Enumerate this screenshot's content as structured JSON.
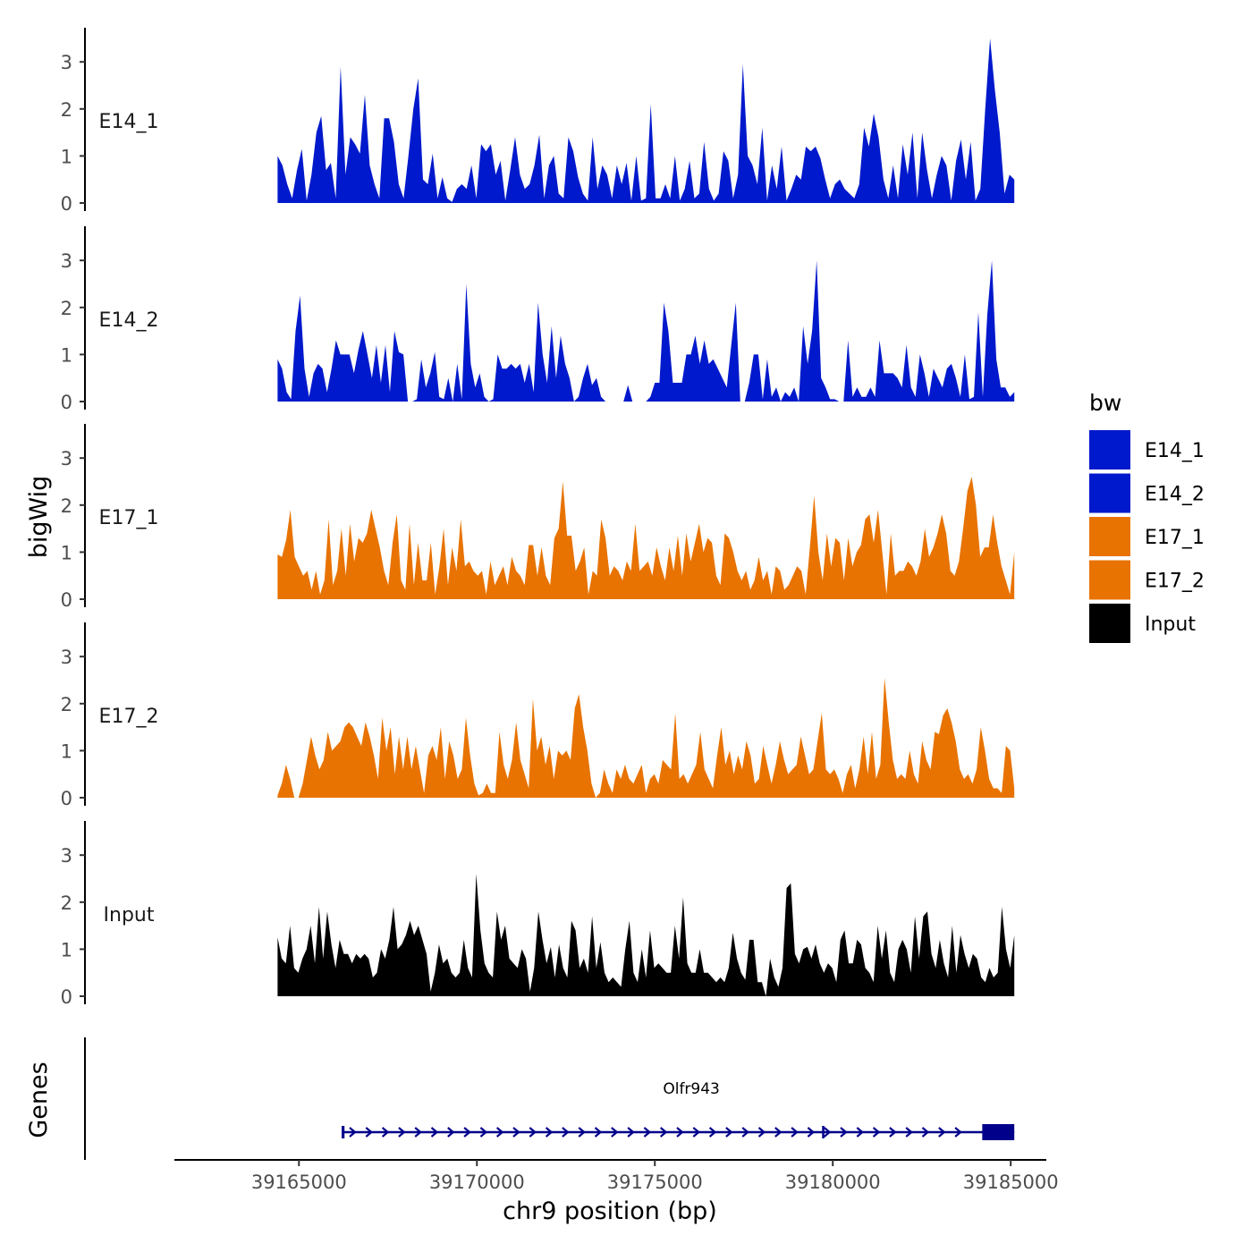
{
  "chart_data": {
    "type": "area",
    "x_label": "chr9 position (bp)",
    "y_label": "bigWig",
    "gene_panel_label": "Genes",
    "x_range": [
      39161500,
      39186000
    ],
    "x_ticks": [
      "39165000",
      "39170000",
      "39175000",
      "39180000",
      "39185000"
    ],
    "y_range": [
      0,
      3.8
    ],
    "y_ticks": [
      "0",
      "1",
      "2",
      "3"
    ],
    "region_start": 39164400,
    "region_end": 39185100,
    "legend": {
      "title": "bw",
      "entries": [
        {
          "label": "E14_1",
          "color": "#0019CC"
        },
        {
          "label": "E14_2",
          "color": "#0019CC"
        },
        {
          "label": "E17_1",
          "color": "#E87300"
        },
        {
          "label": "E17_2",
          "color": "#E87300"
        },
        {
          "label": "Input",
          "color": "#000000"
        }
      ]
    },
    "tracks": [
      {
        "name": "E14_1",
        "color": "#0019CC",
        "values": [
          1.0,
          0.8,
          0.4,
          0.1,
          0.7,
          1.15,
          0.05,
          0.6,
          1.5,
          1.85,
          0.7,
          0.85,
          0.1,
          2.9,
          0.6,
          1.4,
          1.25,
          1.05,
          2.3,
          0.8,
          0.4,
          0.1,
          1.8,
          1.8,
          1.3,
          0.4,
          0.1,
          1.0,
          2.0,
          2.65,
          0.5,
          0.4,
          1.05,
          0.1,
          0.55,
          0.1,
          0.02,
          0.3,
          0.4,
          0.3,
          0.8,
          0.1,
          1.25,
          1.1,
          1.25,
          0.6,
          0.9,
          0.05,
          0.7,
          1.4,
          0.6,
          0.3,
          0.4,
          0.8,
          1.45,
          0.1,
          0.8,
          1.0,
          0.2,
          0.1,
          1.4,
          1.1,
          0.55,
          0.2,
          0.05,
          1.4,
          0.3,
          0.8,
          0.6,
          0.1,
          0.8,
          0.4,
          0.85,
          0.05,
          1.0,
          0.05,
          0.1,
          2.1,
          0.1,
          0.1,
          0.4,
          0.1,
          1.0,
          0.05,
          0.3,
          0.9,
          0.1,
          0.2,
          1.3,
          0.3,
          0.05,
          0.2,
          1.1,
          0.9,
          0.1,
          0.6,
          2.95,
          1.0,
          0.8,
          0.4,
          1.6,
          0.05,
          0.8,
          0.3,
          1.2,
          0.05,
          0.3,
          0.6,
          0.5,
          1.2,
          1.1,
          1.2,
          0.95,
          0.5,
          0.1,
          0.4,
          0.5,
          0.3,
          0.2,
          0.1,
          0.4,
          1.6,
          1.2,
          1.9,
          1.4,
          0.5,
          0.1,
          0.8,
          0.1,
          1.25,
          0.6,
          1.5,
          0.1,
          1.5,
          0.7,
          0.1,
          0.6,
          1.0,
          0.8,
          0.05,
          0.9,
          1.35,
          0.5,
          1.3,
          0.05,
          0.3,
          2.0,
          3.5,
          2.4,
          1.5,
          0.2,
          0.6,
          0.5
        ]
      },
      {
        "name": "E14_2",
        "color": "#0019CC",
        "values": [
          0.9,
          0.7,
          0.2,
          0.05,
          1.5,
          2.25,
          0.7,
          0.1,
          0.6,
          0.8,
          0.7,
          0.2,
          0.7,
          1.3,
          1.0,
          1.0,
          1.0,
          0.6,
          1.1,
          1.5,
          1.0,
          0.5,
          1.2,
          0.4,
          1.2,
          0.2,
          1.5,
          1.05,
          1.0,
          0.0,
          0.0,
          0.05,
          0.9,
          0.3,
          0.6,
          1.05,
          0.1,
          0.05,
          0.5,
          0.0,
          0.8,
          0.05,
          2.5,
          0.8,
          0.3,
          0.6,
          0.1,
          0.0,
          0.05,
          1.0,
          0.7,
          0.7,
          0.8,
          0.7,
          0.8,
          0.4,
          0.8,
          0.2,
          2.1,
          1.0,
          0.4,
          1.6,
          0.5,
          1.4,
          0.8,
          0.5,
          0.0,
          0.1,
          0.5,
          0.8,
          0.35,
          0.5,
          0.1,
          0.0,
          0.0,
          0.0,
          0.0,
          0.0,
          0.35,
          0.0,
          0.0,
          0.0,
          0.0,
          0.1,
          0.4,
          0.4,
          2.1,
          1.5,
          0.4,
          0.4,
          0.4,
          1.0,
          1.0,
          1.4,
          0.8,
          1.3,
          0.8,
          0.9,
          0.7,
          0.5,
          0.3,
          1.2,
          2.1,
          0.0,
          0.0,
          0.4,
          1.0,
          1.0,
          0.05,
          0.9,
          0.1,
          0.3,
          0.0,
          0.2,
          0.1,
          0.3,
          0.0,
          1.6,
          0.8,
          1.5,
          3.0,
          0.5,
          0.3,
          0.05,
          0.05,
          0.0,
          0.0,
          1.3,
          0.1,
          0.3,
          0.1,
          0.1,
          0.3,
          0.1,
          1.3,
          0.6,
          0.6,
          0.6,
          0.5,
          0.3,
          1.2,
          0.3,
          0.1,
          1.0,
          0.6,
          0.1,
          0.7,
          0.5,
          0.3,
          0.7,
          0.8,
          0.5,
          0.1,
          1.0,
          0.05,
          0.1,
          1.9,
          0.1,
          1.85,
          3.0,
          0.9,
          0.3,
          0.3,
          0.1,
          0.2
        ]
      },
      {
        "name": "E17_1",
        "color": "#E87300",
        "values": [
          0.95,
          0.9,
          1.25,
          1.9,
          0.9,
          0.7,
          0.5,
          0.6,
          0.2,
          0.6,
          0.1,
          0.4,
          1.7,
          0.3,
          0.6,
          1.5,
          0.5,
          1.6,
          0.8,
          1.3,
          1.2,
          1.4,
          1.9,
          1.5,
          1.1,
          0.6,
          0.3,
          1.2,
          1.8,
          0.4,
          0.2,
          1.6,
          0.3,
          1.2,
          0.4,
          0.4,
          1.2,
          0.1,
          0.7,
          1.5,
          0.3,
          1.1,
          0.6,
          1.7,
          0.7,
          0.8,
          0.6,
          0.5,
          0.6,
          0.1,
          0.8,
          0.3,
          0.5,
          0.7,
          0.3,
          0.9,
          0.6,
          0.5,
          0.3,
          1.15,
          1.15,
          0.5,
          1.1,
          0.5,
          0.3,
          1.3,
          1.5,
          2.5,
          1.35,
          1.35,
          0.6,
          0.8,
          1.1,
          0.1,
          0.6,
          0.5,
          1.7,
          1.3,
          0.5,
          0.7,
          0.6,
          0.4,
          0.8,
          0.6,
          1.6,
          0.6,
          0.7,
          0.8,
          0.5,
          1.1,
          0.7,
          0.4,
          1.1,
          0.6,
          1.35,
          0.5,
          1.4,
          0.8,
          1.2,
          1.6,
          1.0,
          1.3,
          1.2,
          0.5,
          0.3,
          1.4,
          1.3,
          1.0,
          0.6,
          0.4,
          0.6,
          0.2,
          0.4,
          0.9,
          0.4,
          0.6,
          0.1,
          0.7,
          0.6,
          0.2,
          0.3,
          0.5,
          0.7,
          0.6,
          0.1,
          1.1,
          2.2,
          1.0,
          0.4,
          1.4,
          0.7,
          1.3,
          1.2,
          0.4,
          1.3,
          0.7,
          1.0,
          1.15,
          1.7,
          1.8,
          1.2,
          1.9,
          1.0,
          0.1,
          1.4,
          0.5,
          0.6,
          0.6,
          0.8,
          0.7,
          0.5,
          0.8,
          1.5,
          0.9,
          1.1,
          1.4,
          1.8,
          1.4,
          0.6,
          0.5,
          0.8,
          1.5,
          2.3,
          2.6,
          2.0,
          0.9,
          1.1,
          1.1,
          1.8,
          1.2,
          0.7,
          0.4,
          0.1,
          1.0
        ]
      },
      {
        "name": "E17_2",
        "color": "#E87300",
        "values": [
          0.05,
          0.3,
          0.7,
          0.4,
          0.0,
          0.0,
          0.3,
          0.8,
          1.3,
          0.9,
          0.6,
          0.8,
          1.4,
          1.0,
          1.1,
          1.2,
          1.5,
          1.6,
          1.5,
          1.3,
          1.1,
          1.6,
          1.3,
          0.9,
          0.4,
          1.7,
          1.0,
          1.5,
          0.5,
          1.3,
          0.6,
          1.3,
          0.6,
          1.1,
          0.6,
          0.1,
          0.9,
          1.1,
          0.8,
          1.5,
          0.4,
          1.2,
          0.9,
          0.4,
          0.6,
          1.7,
          0.9,
          0.3,
          0.05,
          0.1,
          0.3,
          0.1,
          0.1,
          1.4,
          0.7,
          0.4,
          0.8,
          1.6,
          0.8,
          0.5,
          0.2,
          2.1,
          1.0,
          1.3,
          0.7,
          1.1,
          0.4,
          1.0,
          0.9,
          1.0,
          0.8,
          1.9,
          2.2,
          1.5,
          1.0,
          0.3,
          0.0,
          0.1,
          0.6,
          0.3,
          0.1,
          0.6,
          0.4,
          0.7,
          0.4,
          0.3,
          0.5,
          0.7,
          0.1,
          0.4,
          0.5,
          0.3,
          0.8,
          0.7,
          0.6,
          1.8,
          0.4,
          0.5,
          0.3,
          0.5,
          0.7,
          1.4,
          0.6,
          0.4,
          0.2,
          0.9,
          1.5,
          0.7,
          1.0,
          0.5,
          0.9,
          0.6,
          1.2,
          0.9,
          0.3,
          0.4,
          1.1,
          0.7,
          0.3,
          0.7,
          1.2,
          0.8,
          0.5,
          0.6,
          0.7,
          1.3,
          0.9,
          0.5,
          0.6,
          1.2,
          1.8,
          0.6,
          0.5,
          0.6,
          0.4,
          0.1,
          0.5,
          0.7,
          0.2,
          0.6,
          1.3,
          0.5,
          1.4,
          0.4,
          0.7,
          2.55,
          1.6,
          0.8,
          0.4,
          0.5,
          0.4,
          1.0,
          0.5,
          0.3,
          1.2,
          0.8,
          0.6,
          1.4,
          1.35,
          1.75,
          1.9,
          1.6,
          1.2,
          0.6,
          0.4,
          0.5,
          0.3,
          0.6,
          1.5,
          1.0,
          0.4,
          0.2,
          0.2,
          0.1,
          1.1,
          1.0,
          0.2
        ]
      },
      {
        "name": "Input",
        "color": "#000000",
        "values": [
          1.25,
          0.8,
          0.7,
          1.5,
          0.6,
          0.5,
          0.8,
          1.0,
          1.5,
          0.7,
          1.9,
          0.8,
          1.8,
          1.1,
          0.6,
          1.2,
          0.9,
          0.9,
          0.7,
          0.9,
          0.8,
          0.9,
          0.8,
          0.4,
          0.5,
          1.0,
          0.8,
          1.2,
          1.9,
          1.0,
          1.1,
          1.3,
          1.6,
          1.3,
          1.5,
          1.2,
          0.9,
          0.1,
          0.5,
          1.1,
          0.7,
          0.8,
          0.5,
          0.4,
          0.5,
          1.2,
          0.6,
          0.4,
          2.6,
          1.4,
          0.7,
          0.5,
          0.4,
          1.8,
          1.2,
          1.5,
          0.8,
          0.7,
          0.6,
          1.0,
          0.8,
          0.1,
          0.6,
          1.8,
          1.2,
          0.7,
          1.05,
          0.4,
          1.1,
          0.6,
          0.4,
          1.6,
          1.4,
          0.6,
          0.8,
          0.5,
          1.7,
          0.6,
          1.15,
          0.5,
          0.3,
          0.4,
          0.3,
          0.2,
          1.0,
          1.6,
          0.5,
          0.3,
          1.0,
          0.4,
          1.4,
          0.6,
          0.7,
          0.6,
          0.5,
          0.5,
          1.5,
          0.8,
          2.1,
          0.7,
          0.5,
          0.5,
          1.0,
          0.5,
          0.5,
          0.4,
          0.3,
          0.4,
          0.3,
          0.6,
          1.35,
          0.8,
          0.5,
          0.35,
          1.2,
          1.2,
          0.3,
          0.3,
          0.0,
          0.8,
          0.4,
          0.2,
          0.6,
          2.3,
          2.4,
          0.9,
          0.7,
          1.0,
          1.05,
          0.8,
          1.1,
          0.7,
          0.5,
          0.7,
          0.6,
          0.3,
          1.2,
          1.4,
          0.7,
          0.7,
          1.2,
          1.1,
          0.6,
          0.5,
          0.3,
          1.5,
          0.8,
          1.4,
          0.5,
          0.3,
          1.0,
          1.2,
          1.0,
          0.5,
          1.7,
          0.8,
          1.7,
          1.8,
          0.9,
          0.6,
          1.2,
          0.7,
          0.4,
          1.5,
          0.5,
          1.3,
          0.9,
          0.6,
          0.9,
          0.8,
          0.4,
          0.3,
          0.6,
          0.4,
          0.5,
          1.9,
          1.0,
          0.6,
          1.3
        ]
      }
    ],
    "gene": {
      "name": "Olfr943",
      "exons": [
        [
          39166200,
          39166280
        ],
        [
          39179700,
          39179740
        ],
        [
          39184200,
          39185100
        ]
      ],
      "intron_span": [
        39166200,
        39185100
      ],
      "strand": "+",
      "color": "#00008B"
    }
  }
}
